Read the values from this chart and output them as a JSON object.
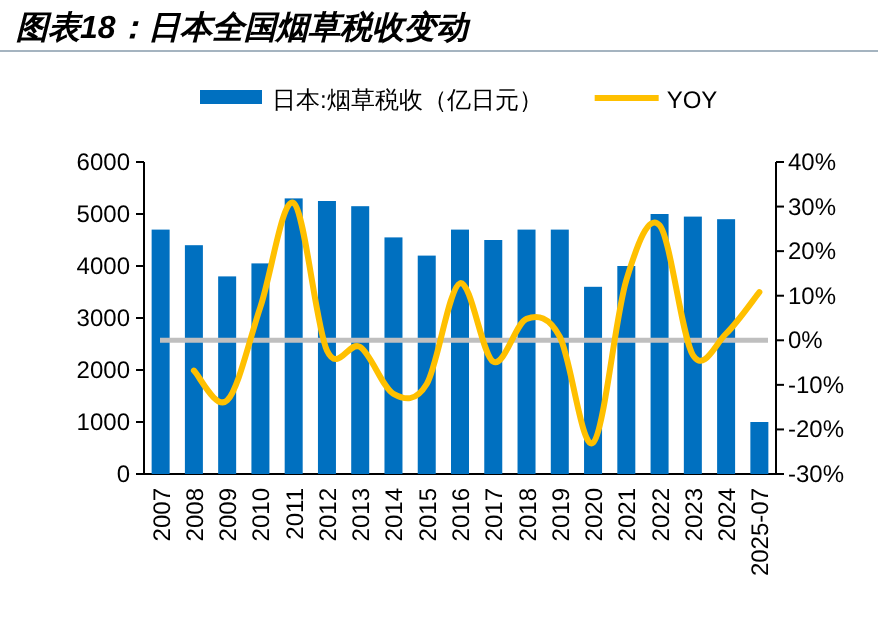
{
  "chart_data": {
    "type": "bar",
    "title": "图表18：日本全国烟草税收变动",
    "categories": [
      "2007",
      "2008",
      "2009",
      "2010",
      "2011",
      "2012",
      "2013",
      "2014",
      "2015",
      "2016",
      "2017",
      "2018",
      "2019",
      "2020",
      "2021",
      "2022",
      "2023",
      "2024",
      "2025-07"
    ],
    "series": [
      {
        "name": "日本:烟草税收（亿日元）",
        "color": "#0070c0",
        "values": [
          4700,
          4400,
          3800,
          4050,
          5300,
          5250,
          5150,
          4550,
          4200,
          4700,
          4500,
          4700,
          4700,
          3600,
          4000,
          5000,
          4950,
          4900,
          1000
        ]
      },
      {
        "name": "YOY",
        "type": "line",
        "axis": "y2",
        "color": "#ffc000",
        "values": [
          null,
          -6.8,
          -13.5,
          7.5,
          30.8,
          -2.3,
          -1.5,
          -12,
          -9.8,
          12.8,
          -4.8,
          4.8,
          0.8,
          -23,
          13.5,
          25.8,
          -3.3,
          1.5,
          10.8
        ]
      }
    ],
    "ylim": [
      0,
      6000
    ],
    "yticks": [
      0,
      1000,
      2000,
      3000,
      4000,
      5000,
      6000
    ],
    "y2lim": [
      -30,
      40
    ],
    "y2ticks": [
      {
        "value": -30,
        "label": "-30%"
      },
      {
        "value": -20,
        "label": "-20%"
      },
      {
        "value": -10,
        "label": "-10%"
      },
      {
        "value": 0,
        "label": "0%"
      },
      {
        "value": 10,
        "label": "10%"
      },
      {
        "value": 20,
        "label": "20%"
      },
      {
        "value": 30,
        "label": "30%"
      },
      {
        "value": 40,
        "label": "40%"
      }
    ],
    "ref_lines": [
      {
        "axis": "y2",
        "value": 0,
        "color": "#bfbfbf"
      }
    ],
    "legend": "top",
    "grid": false
  }
}
